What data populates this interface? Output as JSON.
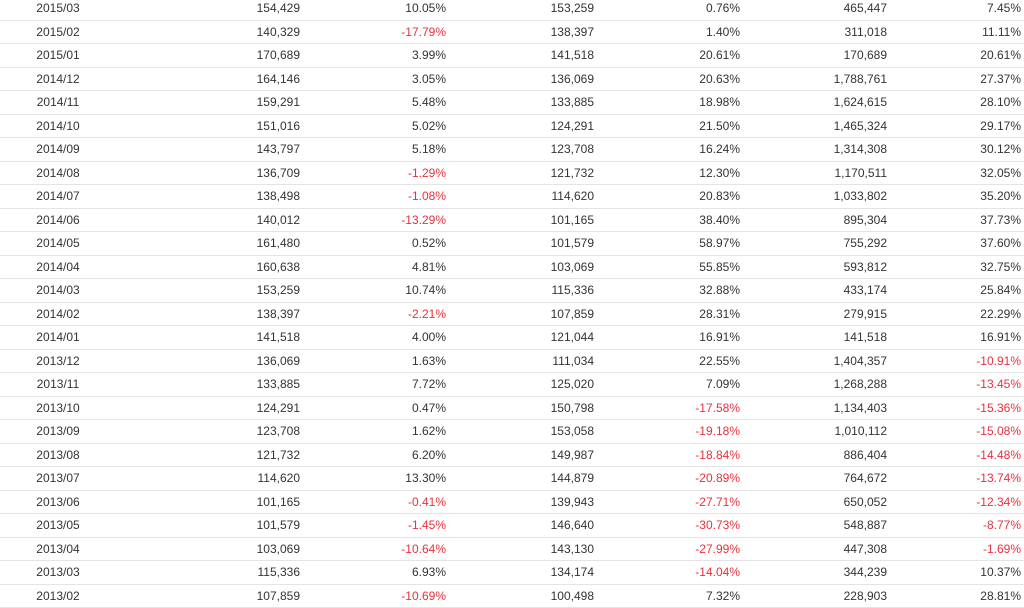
{
  "colors": {
    "negative": "#e8323c",
    "text": "#333333",
    "row_border": "#e4e4e4"
  },
  "table": {
    "rows": [
      [
        "2015/03",
        "154,429",
        "10.05%",
        "153,259",
        "0.76%",
        "465,447",
        "7.45%"
      ],
      [
        "2015/02",
        "140,329",
        "-17.79%",
        "138,397",
        "1.40%",
        "311,018",
        "11.11%"
      ],
      [
        "2015/01",
        "170,689",
        "3.99%",
        "141,518",
        "20.61%",
        "170,689",
        "20.61%"
      ],
      [
        "2014/12",
        "164,146",
        "3.05%",
        "136,069",
        "20.63%",
        "1,788,761",
        "27.37%"
      ],
      [
        "2014/11",
        "159,291",
        "5.48%",
        "133,885",
        "18.98%",
        "1,624,615",
        "28.10%"
      ],
      [
        "2014/10",
        "151,016",
        "5.02%",
        "124,291",
        "21.50%",
        "1,465,324",
        "29.17%"
      ],
      [
        "2014/09",
        "143,797",
        "5.18%",
        "123,708",
        "16.24%",
        "1,314,308",
        "30.12%"
      ],
      [
        "2014/08",
        "136,709",
        "-1.29%",
        "121,732",
        "12.30%",
        "1,170,511",
        "32.05%"
      ],
      [
        "2014/07",
        "138,498",
        "-1.08%",
        "114,620",
        "20.83%",
        "1,033,802",
        "35.20%"
      ],
      [
        "2014/06",
        "140,012",
        "-13.29%",
        "101,165",
        "38.40%",
        "895,304",
        "37.73%"
      ],
      [
        "2014/05",
        "161,480",
        "0.52%",
        "101,579",
        "58.97%",
        "755,292",
        "37.60%"
      ],
      [
        "2014/04",
        "160,638",
        "4.81%",
        "103,069",
        "55.85%",
        "593,812",
        "32.75%"
      ],
      [
        "2014/03",
        "153,259",
        "10.74%",
        "115,336",
        "32.88%",
        "433,174",
        "25.84%"
      ],
      [
        "2014/02",
        "138,397",
        "-2.21%",
        "107,859",
        "28.31%",
        "279,915",
        "22.29%"
      ],
      [
        "2014/01",
        "141,518",
        "4.00%",
        "121,044",
        "16.91%",
        "141,518",
        "16.91%"
      ],
      [
        "2013/12",
        "136,069",
        "1.63%",
        "111,034",
        "22.55%",
        "1,404,357",
        "-10.91%"
      ],
      [
        "2013/11",
        "133,885",
        "7.72%",
        "125,020",
        "7.09%",
        "1,268,288",
        "-13.45%"
      ],
      [
        "2013/10",
        "124,291",
        "0.47%",
        "150,798",
        "-17.58%",
        "1,134,403",
        "-15.36%"
      ],
      [
        "2013/09",
        "123,708",
        "1.62%",
        "153,058",
        "-19.18%",
        "1,010,112",
        "-15.08%"
      ],
      [
        "2013/08",
        "121,732",
        "6.20%",
        "149,987",
        "-18.84%",
        "886,404",
        "-14.48%"
      ],
      [
        "2013/07",
        "114,620",
        "13.30%",
        "144,879",
        "-20.89%",
        "764,672",
        "-13.74%"
      ],
      [
        "2013/06",
        "101,165",
        "-0.41%",
        "139,943",
        "-27.71%",
        "650,052",
        "-12.34%"
      ],
      [
        "2013/05",
        "101,579",
        "-1.45%",
        "146,640",
        "-30.73%",
        "548,887",
        "-8.77%"
      ],
      [
        "2013/04",
        "103,069",
        "-10.64%",
        "143,130",
        "-27.99%",
        "447,308",
        "-1.69%"
      ],
      [
        "2013/03",
        "115,336",
        "6.93%",
        "134,174",
        "-14.04%",
        "344,239",
        "10.37%"
      ],
      [
        "2013/02",
        "107,859",
        "-10.69%",
        "100,498",
        "7.32%",
        "228,903",
        "28.81%"
      ]
    ]
  }
}
